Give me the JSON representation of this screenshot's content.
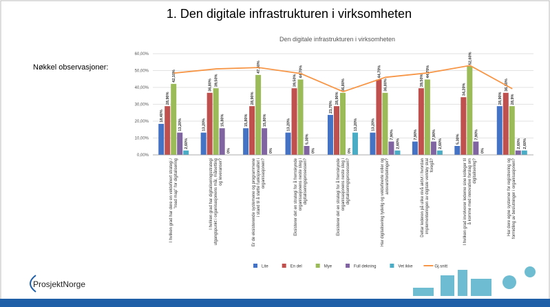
{
  "slide_title": "1. Den digitale infrastrukturen i virksomheten",
  "side_label": "Nøkkel observasjoner:",
  "logo": "ProsjektNorge",
  "chart_data": {
    "type": "bar",
    "title": "Den digitale infrastrukturen i virksomheten",
    "categories": [
      "I hvilken grad har dere en veldefinert strategi / \"road map\" for digitalisering",
      "I hvilken grad har digitaliseringsstrategi utgangspunkt i organisasjonens mål, målsetting og leveranser?",
      "Er de eksisterende systemene og programmene i stand til å støtte funksjonalitet i organisasjonen?",
      "Eksisterer det en strategi for å fremskynde organisasjonens neste steg i digitaliseringsprosessen?",
      "Eksisterer det en strategi for å fremskynde organisasjonens neste steg i digitaliseringsprosessen?",
      "Har digitalisering tydelig og veldefinerte roller og ansvarsfordelinger?",
      "Deltar lederen på ulike nivå aktivt i hvordan implementeringen av digitale verktøy skal foregå?",
      "I hvilken grad involverer lederne sine kolleger til å komme med innovative forslag om digitalisering?",
      "Har dere egne systemer for registrering og formidling av beslutninger i organisasjonen?"
    ],
    "series": [
      {
        "name": "Lite",
        "color": "#4472c4",
        "values": [
          18.4,
          13.2,
          15.8,
          13.2,
          23.7,
          13.2,
          7.9,
          5.3,
          28.9
        ],
        "value_labels": [
          "18,40%",
          "13,20%",
          "15,80%",
          "13,20%",
          "23,70%",
          "13,20%",
          "7,90%",
          "5,30%",
          "28,90%"
        ]
      },
      {
        "name": "En del",
        "color": "#c0504d",
        "values": [
          28.9,
          36.8,
          28.9,
          39.5,
          28.9,
          44.7,
          39.5,
          34.2,
          36.8
        ],
        "value_labels": [
          "28,90%",
          "36,80%",
          "28,90%",
          "39,50%",
          "28,90%",
          "44,70%",
          "39,50%",
          "34,20%",
          "36,80%"
        ]
      },
      {
        "name": "Mye",
        "color": "#9bbb59",
        "values": [
          42.1,
          39.5,
          47.4,
          44.7,
          36.8,
          36.8,
          44.7,
          52.6,
          28.9
        ],
        "value_labels": [
          "42,10%",
          "39,50%",
          "47,40%",
          "44,70%",
          "36,80%",
          "36,80%",
          "44,70%",
          "52,60%",
          "28,9%"
        ]
      },
      {
        "name": "Full dekning",
        "color": "#8064a2",
        "values": [
          13.2,
          15.8,
          15.8,
          5.3,
          0,
          7.9,
          7.9,
          7.9,
          2.6
        ],
        "value_labels": [
          "13,20%",
          "15,80%",
          "15,80%",
          "5,30%",
          "0%",
          "7,90%",
          "7,90%",
          "7,90%",
          "2,60%"
        ]
      },
      {
        "name": "Vet ikke",
        "color": "#4bacc6",
        "values": [
          2.6,
          0,
          0,
          0,
          13.2,
          2.6,
          2.6,
          0,
          2.6
        ],
        "value_labels": [
          "2,60%",
          "0%",
          "0%",
          "0%",
          "13,20%",
          "2,60%",
          "2,60%",
          "0%",
          "2,60%"
        ]
      },
      {
        "name": "Gj.snitt",
        "color": "#f79646",
        "type": "line",
        "values": [
          48.5,
          51,
          51.8,
          48.2,
          37.5,
          46,
          48.6,
          53,
          39.2
        ]
      }
    ],
    "ylim": [
      0,
      60
    ],
    "yticks": [
      {
        "value": 0,
        "label": "0,00%"
      },
      {
        "value": 10,
        "label": "10,00%"
      },
      {
        "value": 20,
        "label": "20,00%"
      },
      {
        "value": 30,
        "label": "30,00%"
      },
      {
        "value": 40,
        "label": "40,00%"
      },
      {
        "value": 50,
        "label": "50,00%"
      },
      {
        "value": 60,
        "label": "60,00%"
      }
    ],
    "grid": true
  }
}
